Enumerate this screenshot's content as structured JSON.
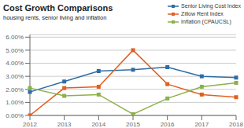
{
  "chart_data": {
    "type": "line",
    "title": "Cost Growth Comparisons",
    "subtitle": "housing rents, senior living and inflation",
    "categories": [
      "2012",
      "2013",
      "2014",
      "2015",
      "2016",
      "2017",
      "2018"
    ],
    "series": [
      {
        "name": "Senior Living Cost Index",
        "color": "#2E6DA4",
        "values": [
          0.018,
          0.026,
          0.034,
          0.035,
          0.037,
          0.03,
          0.029
        ]
      },
      {
        "name": "Zillow Rent Index",
        "color": "#E06020",
        "values": [
          0.0,
          0.021,
          0.022,
          0.05,
          0.024,
          0.016,
          0.014
        ]
      },
      {
        "name": "Inflation (CPAUCSL)",
        "color": "#8DB04A",
        "values": [
          0.021,
          0.015,
          0.016,
          0.001,
          0.013,
          0.022,
          0.025
        ]
      }
    ],
    "ylim": [
      0.0,
      0.062
    ],
    "yticks": [
      {
        "value": 0.0,
        "label": "0.00%"
      },
      {
        "value": 0.01,
        "label": "1.00%"
      },
      {
        "value": 0.02,
        "label": "2.00%"
      },
      {
        "value": 0.03,
        "label": "3.00%"
      },
      {
        "value": 0.04,
        "label": "4.00%"
      },
      {
        "value": 0.05,
        "label": "5.00%"
      },
      {
        "value": 0.06,
        "label": "6.00%"
      }
    ],
    "grid": true,
    "legend": "upper right",
    "marker": "square"
  }
}
